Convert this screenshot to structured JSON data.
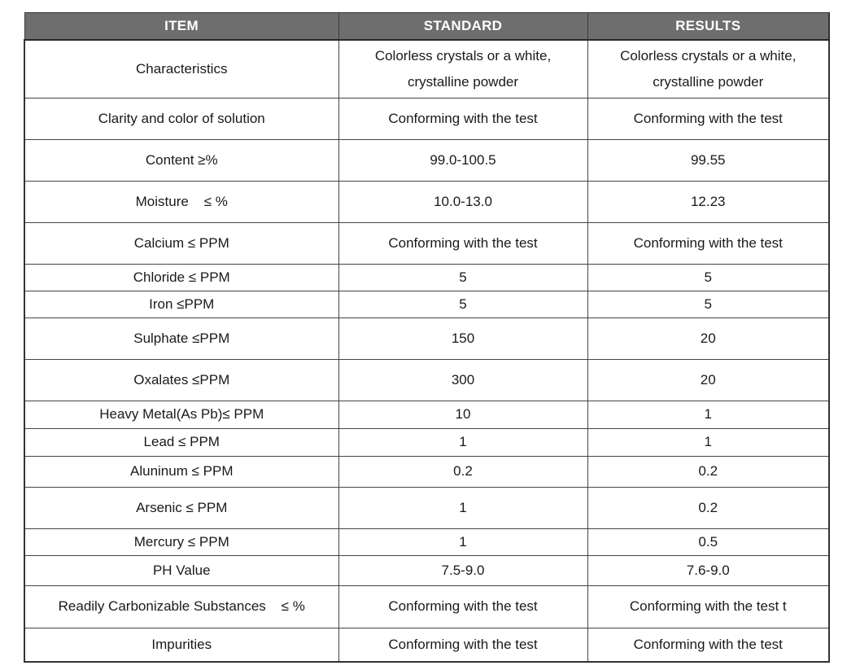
{
  "header": {
    "item": "ITEM",
    "standard": "STANDARD",
    "results": "RESULTS"
  },
  "rows": [
    {
      "item": "Characteristics",
      "standard": "Colorless crystals or a white,\ncrystalline powder",
      "results": "Colorless crystals or a white,\ncrystalline powder"
    },
    {
      "item": "Clarity and color of solution",
      "standard": "Conforming with the test",
      "results": "Conforming with the test"
    },
    {
      "item": "Content ≥%",
      "standard": "99.0-100.5",
      "results": "99.55"
    },
    {
      "item": "Moisture    ≤ %",
      "standard": "10.0-13.0",
      "results": "12.23"
    },
    {
      "item": "Calcium ≤ PPM",
      "standard": "Conforming with the test",
      "results": "Conforming with the test"
    },
    {
      "item": "Chloride ≤ PPM",
      "standard": "5",
      "results": "5"
    },
    {
      "item": "Iron ≤PPM",
      "standard": "5",
      "results": "5"
    },
    {
      "item": "Sulphate ≤PPM",
      "standard": "150",
      "results": "20"
    },
    {
      "item": "Oxalates ≤PPM",
      "standard": "300",
      "results": "20"
    },
    {
      "item": "Heavy Metal(As Pb)≤ PPM",
      "standard": "10",
      "results": "1"
    },
    {
      "item": "Lead ≤ PPM",
      "standard": "1",
      "results": "1"
    },
    {
      "item": "Aluninum ≤ PPM",
      "standard": "0.2",
      "results": "0.2"
    },
    {
      "item": "Arsenic ≤ PPM",
      "standard": "1",
      "results": "0.2"
    },
    {
      "item": "Mercury ≤ PPM",
      "standard": "1",
      "results": "0.5"
    },
    {
      "item": "PH Value",
      "standard": "7.5-9.0",
      "results": "7.6-9.0"
    },
    {
      "item": "Readily Carbonizable Substances    ≤ %",
      "standard": "Conforming with the test",
      "results": "Conforming with the test t"
    },
    {
      "item": "Impurities",
      "standard": "Conforming with the test",
      "results": "Conforming with the test"
    }
  ]
}
